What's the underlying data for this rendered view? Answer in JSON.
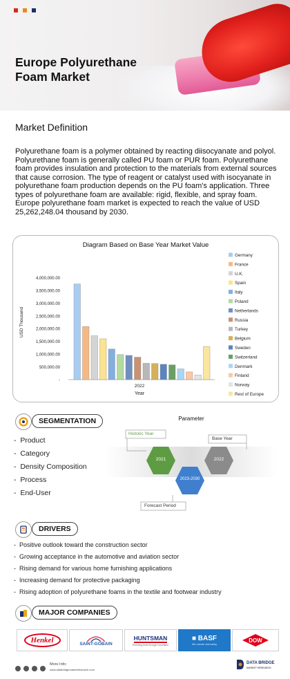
{
  "hero": {
    "title_line1": "Europe Polyurethane",
    "title_line2": "Foam Market"
  },
  "definition": {
    "heading": "Market Definition",
    "text": "Polyurethane foam is a polymer obtained by reacting diisocyanate and polyol. Polyurethane foam is generally called PU foam or PUR foam. Polyurethane foam provides insulation and protection to the materials from external sources that cause corrosion. The type of reagent or catalyst used with isocyanate in polyurethane foam production depends on the PU foam's application. Three types of polyurethane foam are available: rigid, flexible, and spray foam. Europe polyurethane foam market is expected to reach the value of USD 25,262,248.04 thousand by 2030."
  },
  "chart_data": {
    "type": "bar",
    "title": "Diagram Based on Base Year Market Value",
    "xlabel": "Year",
    "ylabel": "USD Thousand",
    "categories": [
      "2022"
    ],
    "ylim": [
      0,
      4500000
    ],
    "ytick_labels": [
      "-",
      "500,000.00",
      "1,000,000.00",
      "1,500,000.00",
      "2,000,000.00",
      "2,500,000.00",
      "3,000,000.00",
      "3,500,000.00",
      "4,000,000.00"
    ],
    "ytick_values": [
      0,
      500000,
      1000000,
      1500000,
      2000000,
      2500000,
      3000000,
      3500000,
      4000000
    ],
    "legend_position": "right",
    "series": [
      {
        "name": "Germany",
        "values": [
          3750000
        ],
        "color": "#a9cdf0"
      },
      {
        "name": "France",
        "values": [
          2080000
        ],
        "color": "#f6b984"
      },
      {
        "name": "U.K.",
        "values": [
          1720000
        ],
        "color": "#d4d4d4"
      },
      {
        "name": "Spain",
        "values": [
          1600000
        ],
        "color": "#fbe38f"
      },
      {
        "name": "Italy",
        "values": [
          1200000
        ],
        "color": "#82afe0"
      },
      {
        "name": "Poland",
        "values": [
          980000
        ],
        "color": "#b3dba0"
      },
      {
        "name": "Netherlands",
        "values": [
          950000
        ],
        "color": "#6f8fc0"
      },
      {
        "name": "Russia",
        "values": [
          880000
        ],
        "color": "#c89274"
      },
      {
        "name": "Turkey",
        "values": [
          640000
        ],
        "color": "#b8b8b8"
      },
      {
        "name": "Belgium",
        "values": [
          630000
        ],
        "color": "#d4b15a"
      },
      {
        "name": "Sweden",
        "values": [
          600000
        ],
        "color": "#5a86c0"
      },
      {
        "name": "Switzerland",
        "values": [
          580000
        ],
        "color": "#6a9f64"
      },
      {
        "name": "Denmark",
        "values": [
          420000
        ],
        "color": "#aad6f5"
      },
      {
        "name": "Finland",
        "values": [
          300000
        ],
        "color": "#f8c9a3"
      },
      {
        "name": "Norway",
        "values": [
          180000
        ],
        "color": "#e4e4e4"
      },
      {
        "name": "Rest of Europe",
        "values": [
          1300000
        ],
        "color": "#fae79e"
      }
    ]
  },
  "segmentation": {
    "heading": "SEGMENTATION",
    "items": [
      "Product",
      "Category",
      "Density Composition",
      "Process",
      "End-User"
    ]
  },
  "parameter": {
    "title": "Parameter",
    "historic_label": "Historic Year",
    "historic_value": "2021",
    "base_label": "Base Year",
    "base_value": "2022",
    "forecast_label": "Forecast Period",
    "forecast_value": "2023-2030",
    "colors": {
      "historic": "#5e9c44",
      "forecast": "#3f7fce",
      "base": "#8b8b8b"
    }
  },
  "drivers": {
    "heading": "DRIVERS",
    "items": [
      "Positive outlook toward the construction sector",
      "Growing acceptance in the automotive and aviation sector",
      "Rising demand for various home furnishing applications",
      "Increasing demand for protective packaging",
      "Rising adoption of polyurethane foams in the textile and footwear industry"
    ]
  },
  "companies": {
    "heading": "MAJOR COMPANIES",
    "logos": [
      {
        "name": "Henkel",
        "color": "#e2001a"
      },
      {
        "name": "SAINT-GOBAIN",
        "color": "#2a5aa8"
      },
      {
        "name": "HUNTSMAN",
        "sub": "Enriching lives through innovation",
        "color": "#1c2f7a"
      },
      {
        "name": "BASF",
        "sub": "We create chemistry",
        "color": "#1f78c8"
      },
      {
        "name": "DOW",
        "color": "#e2001a"
      }
    ]
  },
  "footer": {
    "more_info": "More Info:",
    "url": "www.databridgemarketresearch.com",
    "brand_line1": "DATA BRIDGE",
    "brand_line2": "MARKET RESEARCH"
  },
  "colors": {
    "accent_red": "#d52b1e",
    "accent_orange": "#e88a1a",
    "navy": "#1c2f66"
  }
}
